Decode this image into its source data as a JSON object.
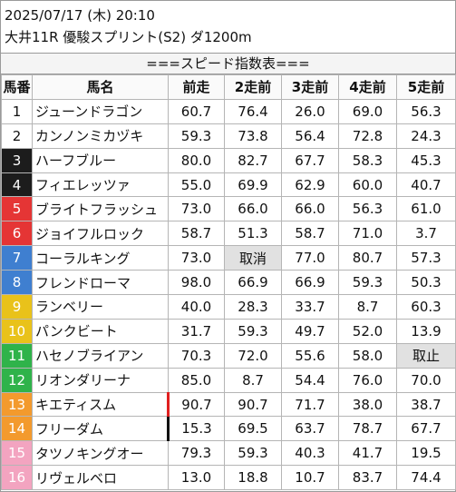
{
  "header": {
    "line1": "2025/07/17 (木) 20:10",
    "line2": "大井11R 優駿スプリント(S2) ダ1200m"
  },
  "title": "===スピード指数表===",
  "columns": [
    "馬番",
    "馬名",
    "前走",
    "2走前",
    "3走前",
    "4走前",
    "5走前"
  ],
  "colors": {
    "1": "#ffffff",
    "2": "#ffffff",
    "3": "#1c1c1c",
    "4": "#1c1c1c",
    "5": "#e53535",
    "6": "#e53535",
    "7": "#3f7fd0",
    "8": "#3f7fd0",
    "9": "#e9c21a",
    "10": "#e9c21a",
    "11": "#2fb34a",
    "12": "#2fb34a",
    "13": "#f39a2d",
    "14": "#f39a2d",
    "15": "#f3a4c0",
    "16": "#f3a4c0"
  },
  "rows": [
    {
      "num": "1",
      "name": "ジューンドラゴン",
      "v": [
        "60.7",
        "76.4",
        "26.0",
        "69.0",
        "56.3"
      ]
    },
    {
      "num": "2",
      "name": "カンノンミカヅキ",
      "v": [
        "59.3",
        "73.8",
        "56.4",
        "72.8",
        "24.3"
      ]
    },
    {
      "num": "3",
      "name": "ハーフブルー",
      "v": [
        "80.0",
        "82.7",
        "67.7",
        "58.3",
        "45.3"
      ]
    },
    {
      "num": "4",
      "name": "フィエレッツァ",
      "v": [
        "55.0",
        "69.9",
        "62.9",
        "60.0",
        "40.7"
      ]
    },
    {
      "num": "5",
      "name": "ブライトフラッシュ",
      "v": [
        "73.0",
        "66.0",
        "66.0",
        "56.3",
        "61.0"
      ]
    },
    {
      "num": "6",
      "name": "ジョイフルロック",
      "v": [
        "58.7",
        "51.3",
        "58.7",
        "71.0",
        "3.7"
      ]
    },
    {
      "num": "7",
      "name": "コーラルキング",
      "v": [
        "73.0",
        "取消",
        "77.0",
        "80.7",
        "57.3"
      ]
    },
    {
      "num": "8",
      "name": "フレンドローマ",
      "v": [
        "98.0",
        "66.9",
        "66.9",
        "59.3",
        "50.3"
      ]
    },
    {
      "num": "9",
      "name": "ランベリー",
      "v": [
        "40.0",
        "28.3",
        "33.7",
        "8.7",
        "60.3"
      ]
    },
    {
      "num": "10",
      "name": "パンクビート",
      "v": [
        "31.7",
        "59.3",
        "49.7",
        "52.0",
        "13.9"
      ]
    },
    {
      "num": "11",
      "name": "ハセノブライアン",
      "v": [
        "70.3",
        "72.0",
        "55.6",
        "58.0",
        "取止"
      ]
    },
    {
      "num": "12",
      "name": "リオンダリーナ",
      "v": [
        "85.0",
        "8.7",
        "54.4",
        "76.0",
        "70.0"
      ]
    },
    {
      "num": "13",
      "name": "キエティスム",
      "v": [
        "90.7",
        "90.7",
        "71.7",
        "38.0",
        "38.7"
      ]
    },
    {
      "num": "14",
      "name": "フリーダム",
      "v": [
        "15.3",
        "69.5",
        "63.7",
        "78.7",
        "67.7"
      ]
    },
    {
      "num": "15",
      "name": "タツノキングオー",
      "v": [
        "79.3",
        "59.3",
        "40.3",
        "41.7",
        "19.5"
      ]
    },
    {
      "num": "16",
      "name": "リヴェルベロ",
      "v": [
        "13.0",
        "18.8",
        "10.7",
        "83.7",
        "74.4"
      ]
    }
  ]
}
